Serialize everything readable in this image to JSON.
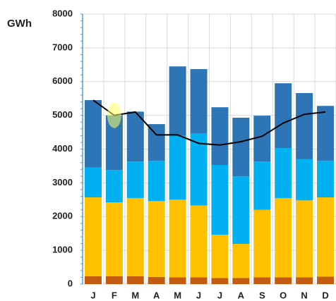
{
  "chart_data": {
    "type": "bar",
    "stacked": true,
    "y_label": "GWh",
    "categories": [
      "J",
      "F",
      "M",
      "A",
      "M",
      "J",
      "J",
      "A",
      "S",
      "O",
      "N",
      "D"
    ],
    "series": [
      {
        "color": "#c55a11",
        "values": [
          230,
          230,
          230,
          210,
          200,
          200,
          180,
          180,
          200,
          200,
          200,
          220
        ]
      },
      {
        "color": "#ffc000",
        "values": [
          2340,
          2190,
          2320,
          2250,
          2300,
          2130,
          1280,
          1010,
          2000,
          2350,
          2280,
          2350
        ]
      },
      {
        "color": "#00b0f0",
        "values": [
          880,
          960,
          1080,
          1190,
          1900,
          2140,
          2070,
          2000,
          1430,
          1480,
          1220,
          1080
        ]
      },
      {
        "color": "#2e75b6",
        "values": [
          2000,
          1620,
          1480,
          1090,
          2050,
          1900,
          1710,
          1740,
          1360,
          1920,
          1960,
          1630
        ]
      },
      {
        "type": "line",
        "color": "#000000",
        "values": [
          5450,
          5000,
          5100,
          4420,
          4420,
          4170,
          4120,
          4220,
          4380,
          4770,
          5030,
          5100
        ]
      }
    ],
    "ylim": [
      0,
      8000
    ],
    "yticks": [
      0,
      1000,
      2000,
      3000,
      4000,
      5000,
      6000,
      7000,
      8000
    ],
    "grid": true
  }
}
